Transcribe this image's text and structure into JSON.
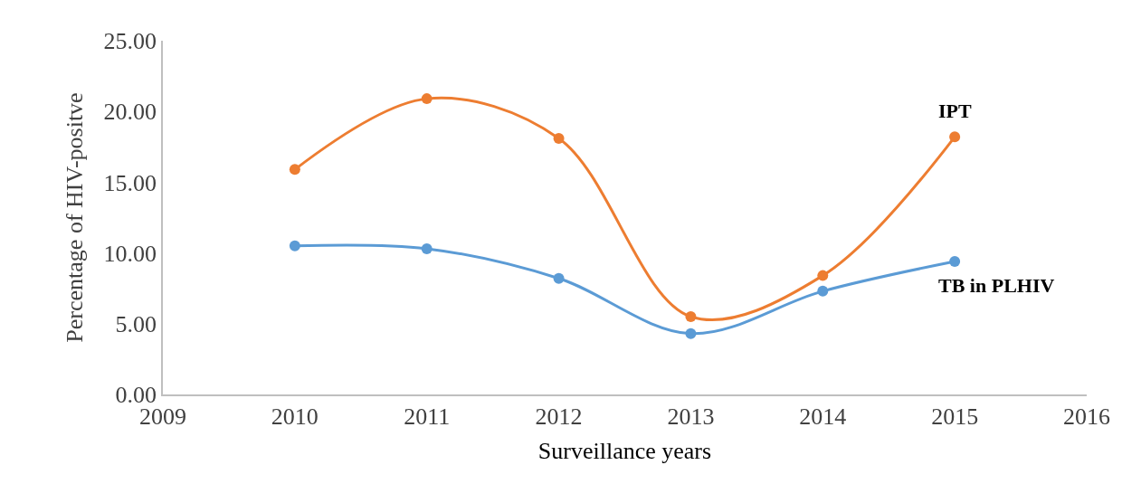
{
  "chart_data": {
    "type": "line",
    "xlabel": "Surveillance years",
    "ylabel": "Percentage of HIV-positve",
    "x": [
      2010,
      2011,
      2012,
      2013,
      2014,
      2015
    ],
    "series": [
      {
        "name": "TB in PLHIV",
        "color": "#5b9bd5",
        "values": [
          10.5,
          10.3,
          8.2,
          4.3,
          7.3,
          9.4
        ]
      },
      {
        "name": "IPT",
        "color": "#ed7d31",
        "values": [
          15.9,
          20.9,
          18.1,
          5.5,
          8.4,
          18.2
        ]
      }
    ],
    "xlim": [
      2009,
      2016
    ],
    "xticks": [
      2009,
      2010,
      2011,
      2012,
      2013,
      2014,
      2015,
      2016
    ],
    "ylim": [
      0,
      25
    ],
    "yticks": [
      {
        "value": 0,
        "label": "0.00"
      },
      {
        "value": 5,
        "label": "5.00"
      },
      {
        "value": 10,
        "label": "10.00"
      },
      {
        "value": 15,
        "label": "15.00"
      },
      {
        "value": 20,
        "label": "20.00"
      },
      {
        "value": 25,
        "label": "25.00"
      }
    ],
    "legend": false,
    "marker": "circle",
    "line_style": "solid"
  }
}
